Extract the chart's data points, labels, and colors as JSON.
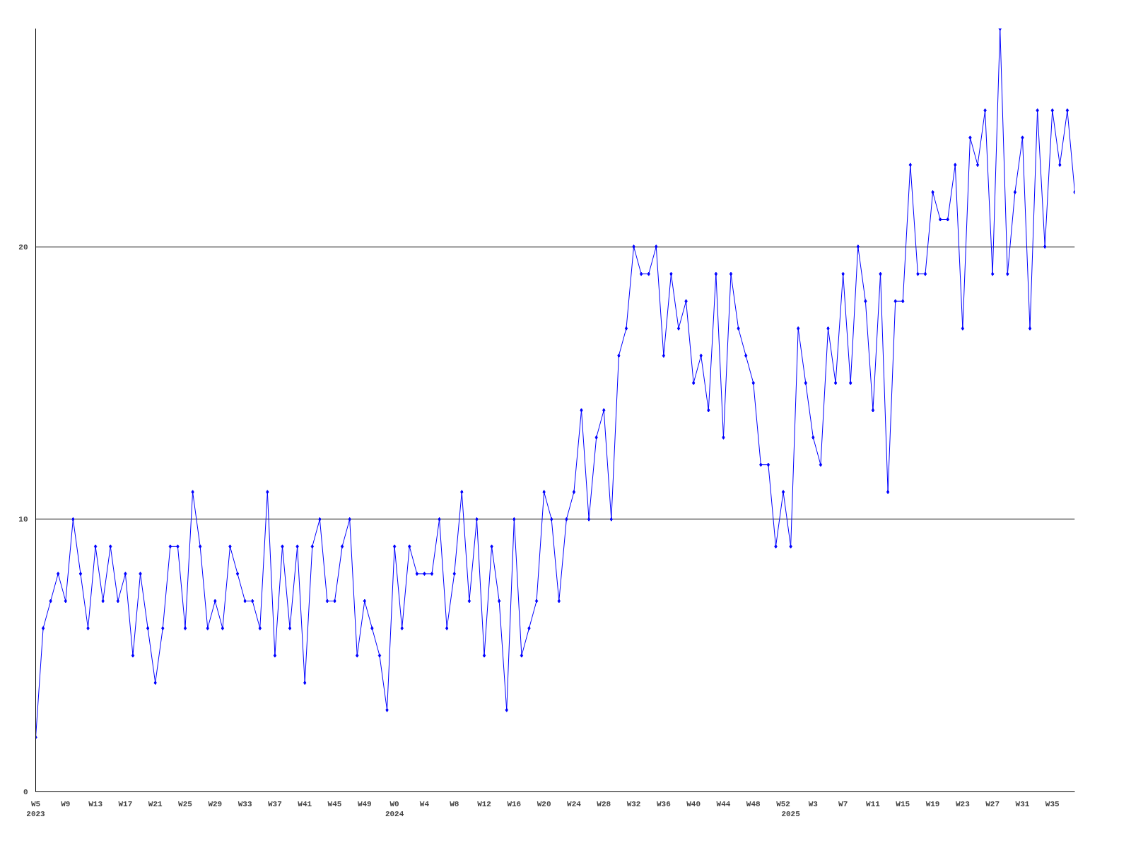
{
  "chart_data": {
    "type": "line",
    "categories": [
      "W5\n2023",
      null,
      null,
      null,
      "W9",
      null,
      null,
      null,
      "W13",
      null,
      null,
      null,
      "W17",
      null,
      null,
      null,
      "W21",
      null,
      null,
      null,
      "W25",
      null,
      null,
      null,
      "W29",
      null,
      null,
      null,
      "W33",
      null,
      null,
      null,
      "W37",
      null,
      null,
      null,
      "W41",
      null,
      null,
      null,
      "W45",
      null,
      null,
      null,
      "W49",
      null,
      null,
      null,
      "W0\n2024",
      null,
      null,
      null,
      "W4",
      null,
      null,
      null,
      "W8",
      null,
      null,
      null,
      "W12",
      null,
      null,
      null,
      "W16",
      null,
      null,
      null,
      "W20",
      null,
      null,
      null,
      "W24",
      null,
      null,
      null,
      "W28",
      null,
      null,
      null,
      "W32",
      null,
      null,
      null,
      "W36",
      null,
      null,
      null,
      "W40",
      null,
      null,
      null,
      "W44",
      null,
      null,
      null,
      "W48",
      null,
      null,
      null,
      "W52",
      "\n2025",
      null,
      null,
      "W3",
      null,
      null,
      null,
      "W7",
      null,
      null,
      null,
      "W11",
      null,
      null,
      null,
      "W15",
      null,
      null,
      null,
      "W19",
      null,
      null,
      null,
      "W23",
      null,
      null,
      null,
      "W27",
      null,
      null,
      null,
      "W31",
      null,
      null,
      null,
      "W35",
      null,
      null,
      null
    ],
    "series": [
      {
        "color": "#0000ff",
        "values": [
          2,
          6,
          7,
          8,
          7,
          10,
          8,
          6,
          9,
          7,
          9,
          7,
          8,
          5,
          8,
          6,
          4,
          6,
          9,
          9,
          6,
          11,
          9,
          6,
          7,
          6,
          9,
          8,
          7,
          7,
          6,
          11,
          5,
          9,
          6,
          9,
          4,
          9,
          10,
          7,
          7,
          9,
          10,
          5,
          7,
          6,
          5,
          3,
          9,
          6,
          9,
          8,
          8,
          8,
          10,
          6,
          8,
          11,
          7,
          10,
          5,
          9,
          7,
          3,
          10,
          5,
          6,
          7,
          11,
          10,
          7,
          10,
          11,
          14,
          10,
          13,
          14,
          10,
          16,
          17,
          20,
          19,
          19,
          20,
          16,
          19,
          17,
          18,
          15,
          16,
          14,
          19,
          13,
          19,
          17,
          16,
          15,
          12,
          12,
          9,
          11,
          9,
          17,
          15,
          13,
          12,
          17,
          15,
          19,
          15,
          20,
          18,
          14,
          19,
          11,
          18,
          18,
          23,
          19,
          19,
          22,
          21,
          21,
          23,
          17,
          24,
          23,
          25,
          19,
          28,
          19,
          22,
          24,
          17,
          25,
          20,
          25,
          23,
          25,
          22
        ]
      }
    ],
    "ylim": [
      0,
      28
    ],
    "yticks": [
      0,
      10,
      20
    ],
    "grid": "y",
    "marker": "diamond",
    "line_style": "solid"
  }
}
